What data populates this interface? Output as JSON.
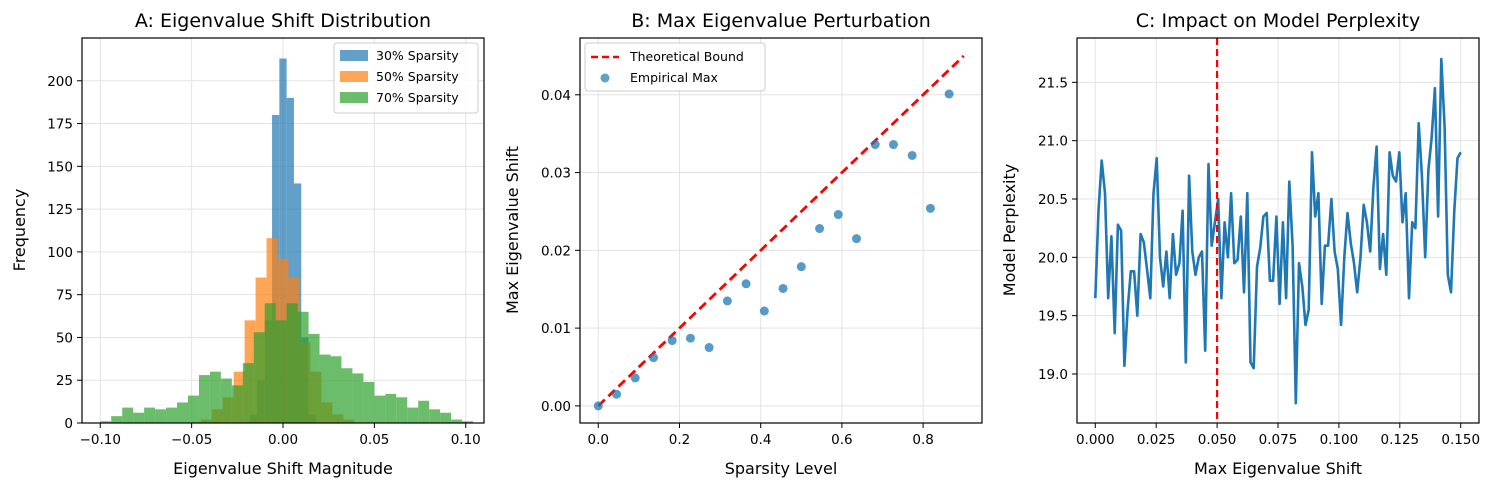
{
  "panels": [
    {
      "title": "A: Eigenvalue Shift Distribution",
      "xlabel": "Eigenvalue Shift Magnitude",
      "ylabel": "Frequency",
      "xticks": [
        "−0.10",
        "−0.05",
        "0.00",
        "0.05",
        "0.10"
      ],
      "yticks": [
        "0",
        "25",
        "50",
        "75",
        "100",
        "125",
        "150",
        "175",
        "200"
      ],
      "legend": [
        "30% Sparsity",
        "50% Sparsity",
        "70% Sparsity"
      ]
    },
    {
      "title": "B: Max Eigenvalue Perturbation",
      "xlabel": "Sparsity Level",
      "ylabel": "Max Eigenvalue Shift",
      "xticks": [
        "0.0",
        "0.2",
        "0.4",
        "0.6",
        "0.8"
      ],
      "yticks": [
        "0.00",
        "0.01",
        "0.02",
        "0.03",
        "0.04"
      ],
      "legend": [
        "Theoretical Bound",
        "Empirical Max"
      ]
    },
    {
      "title": "C: Impact on Model Perplexity",
      "xlabel": "Max Eigenvalue Shift",
      "ylabel": "Model Perplexity",
      "xticks": [
        "0.000",
        "0.025",
        "0.050",
        "0.075",
        "0.100",
        "0.125",
        "0.150"
      ],
      "yticks": [
        "19.0",
        "19.5",
        "20.0",
        "20.5",
        "21.0",
        "21.5"
      ]
    }
  ],
  "chart_data": [
    {
      "type": "histogram",
      "title": "A: Eigenvalue Shift Distribution",
      "xlabel": "Eigenvalue Shift Magnitude",
      "ylabel": "Frequency",
      "xlim": [
        -0.11,
        0.11
      ],
      "ylim": [
        0,
        225
      ],
      "series": [
        {
          "name": "30% Sparsity",
          "color": "#1f77b4",
          "bins": [
            [
              -0.016,
              0.01
            ],
            [
              -0.012,
              0.05
            ],
            [
              -0.008,
              0.065
            ],
            [
              -0.004,
              0.13
            ],
            [
              0.0,
              0.213
            ],
            [
              0.004,
              0.195
            ],
            [
              0.008,
              0.15
            ],
            [
              0.012,
              0.075
            ],
            [
              0.016,
              0.02
            ]
          ],
          "bin_width": 0.004,
          "counts": [
            5,
            25,
            60,
            180,
            213,
            190,
            140,
            50,
            5
          ]
        },
        {
          "name": "50% Sparsity",
          "color": "#ff7f0e",
          "bin_width": 0.006,
          "edges_start": -0.045,
          "counts": [
            2,
            8,
            15,
            30,
            60,
            85,
            108,
            96,
            85,
            47,
            30,
            12,
            5,
            2,
            0
          ]
        },
        {
          "name": "70% Sparsity",
          "color": "#2ca02c",
          "bin_width": 0.006,
          "edges_start": -0.1,
          "counts": [
            1,
            4,
            9,
            6,
            9,
            8,
            9,
            12,
            16,
            28,
            30,
            26,
            22,
            35,
            53,
            70,
            60,
            70,
            65,
            52,
            40,
            39,
            32,
            29,
            24,
            16,
            17,
            15,
            9,
            13,
            8,
            6,
            2,
            1
          ]
        }
      ]
    },
    {
      "type": "line+scatter",
      "title": "B: Max Eigenvalue Perturbation",
      "xlabel": "Sparsity Level",
      "ylabel": "Max Eigenvalue Shift",
      "xlim": [
        -0.045,
        0.945
      ],
      "ylim": [
        -0.0022,
        0.0473
      ],
      "series": [
        {
          "name": "Theoretical Bound",
          "type": "line",
          "color": "#ff0000",
          "x": [
            0,
            0.9
          ],
          "y": [
            0,
            0.045
          ]
        },
        {
          "name": "Empirical Max",
          "type": "scatter",
          "color": "#1f77b4",
          "x": [
            0,
            0.045,
            0.091,
            0.136,
            0.182,
            0.227,
            0.273,
            0.318,
            0.364,
            0.409,
            0.455,
            0.5,
            0.545,
            0.591,
            0.636,
            0.682,
            0.727,
            0.773,
            0.818,
            0.864
          ],
          "y": [
            0.0,
            0.0015,
            0.0036,
            0.0062,
            0.0084,
            0.0087,
            0.0075,
            0.0135,
            0.0157,
            0.0122,
            0.0151,
            0.0179,
            0.0228,
            0.0246,
            0.0215,
            0.0336,
            0.0336,
            0.0322,
            0.0254,
            0.0401
          ]
        }
      ]
    },
    {
      "type": "line",
      "title": "C: Impact on Model Perplexity",
      "xlabel": "Max Eigenvalue Shift",
      "ylabel": "Model Perplexity",
      "xlim": [
        -0.0075,
        0.1575
      ],
      "ylim": [
        18.58,
        21.88
      ],
      "vline": {
        "x": 0.05,
        "color": "#ff0000",
        "style": "dashed"
      },
      "series": [
        {
          "name": "perplexity",
          "color": "#1f77b4",
          "x_start": 0.0,
          "x_end": 0.15,
          "y": [
            19.65,
            20.4,
            20.83,
            20.55,
            19.65,
            20.18,
            19.35,
            20.28,
            20.23,
            19.07,
            19.55,
            19.88,
            19.88,
            19.5,
            20.2,
            20.13,
            19.9,
            19.65,
            20.55,
            20.85,
            20.0,
            19.75,
            20.05,
            19.65,
            20.2,
            19.85,
            19.95,
            20.4,
            19.1,
            20.7,
            20.05,
            19.85,
            20.0,
            20.05,
            19.2,
            20.8,
            20.1,
            20.3,
            20.5,
            19.65,
            20.3,
            20.0,
            20.55,
            19.95,
            19.98,
            20.35,
            19.7,
            20.55,
            19.1,
            19.05,
            19.92,
            20.08,
            20.35,
            20.38,
            19.8,
            19.8,
            20.35,
            19.6,
            20.3,
            19.65,
            20.65,
            20.1,
            18.75,
            19.95,
            19.75,
            19.42,
            19.55,
            20.9,
            20.35,
            20.55,
            19.6,
            20.1,
            20.1,
            20.5,
            20.05,
            19.9,
            19.42,
            20.0,
            20.38,
            20.12,
            19.95,
            19.7,
            20.0,
            20.45,
            20.3,
            20.05,
            20.6,
            20.95,
            19.9,
            20.2,
            19.85,
            20.9,
            20.7,
            20.65,
            20.9,
            20.3,
            20.55,
            19.65,
            20.3,
            20.25,
            21.15,
            20.7,
            20.0,
            20.75,
            21.02,
            21.45,
            20.35,
            21.7,
            21.12,
            19.85,
            19.7,
            20.4,
            20.85,
            20.9
          ]
        }
      ]
    }
  ]
}
